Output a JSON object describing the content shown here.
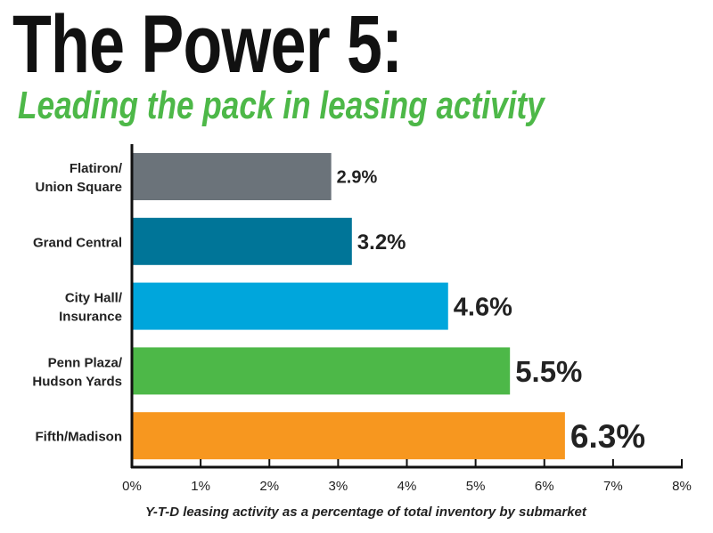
{
  "chart_data": {
    "type": "bar",
    "orientation": "horizontal",
    "title": "The Power 5:",
    "subtitle": "Leading the pack in leasing activity",
    "xlabel": "Y-T-D leasing activity as a percentage of total inventory by submarket",
    "ylabel": "",
    "xlim": [
      0,
      8
    ],
    "x_ticks": [
      "0%",
      "1%",
      "2%",
      "3%",
      "4%",
      "5%",
      "6%",
      "7%",
      "8%"
    ],
    "categories": [
      [
        "Flatiron/",
        "Union Square"
      ],
      [
        "Grand Central"
      ],
      [
        "City Hall/",
        "Insurance"
      ],
      [
        "Penn Plaza/",
        "Hudson Yards"
      ],
      [
        "Fifth/Madison"
      ]
    ],
    "values": [
      2.9,
      3.2,
      4.6,
      5.5,
      6.3
    ],
    "value_labels": [
      "2.9%",
      "3.2%",
      "4.6%",
      "5.5%",
      "6.3%"
    ],
    "colors": [
      "#6b737a",
      "#007598",
      "#00a6dc",
      "#4db848",
      "#f7971f"
    ],
    "grid": false,
    "legend": "none"
  }
}
